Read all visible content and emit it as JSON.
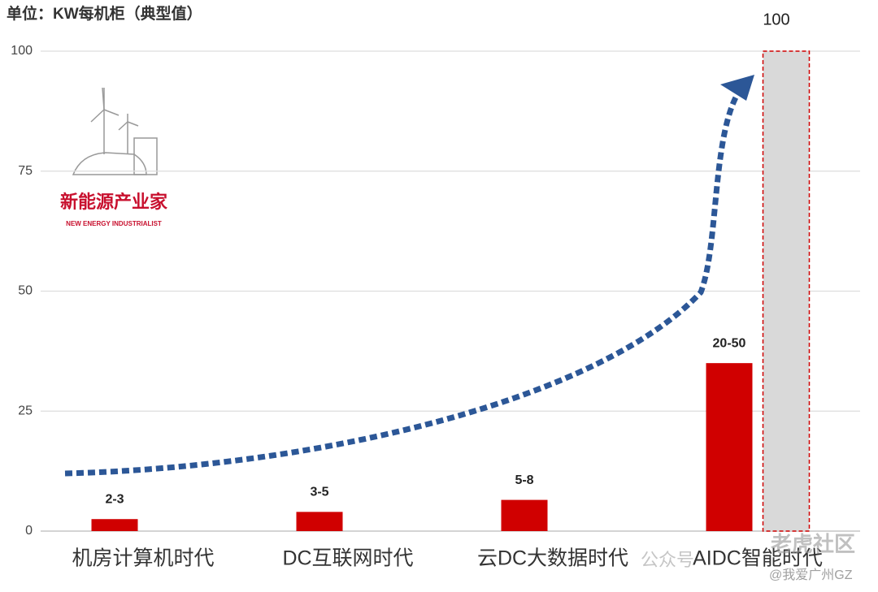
{
  "chart_data": {
    "type": "bar",
    "title": "单位：KW每机柜（典型值）",
    "categories": [
      "机房计算机时代",
      "DC互联网时代",
      "云DC大数据时代",
      "AIDC智能时代"
    ],
    "series": [
      {
        "color": "#d00000",
        "values": [
          2.5,
          4,
          6.5,
          35
        ],
        "value_labels": [
          "2-3",
          "3-5",
          "5-8",
          "20-50"
        ]
      },
      {
        "color": "#d9d9d9",
        "edge_color": "#d00000",
        "values": [
          null,
          null,
          null,
          100
        ]
      }
    ],
    "ylim": [
      0,
      100
    ],
    "yticks": [
      0,
      25,
      50,
      75,
      100
    ],
    "grid": true
  },
  "watermarks": [
    "新能源产业家",
    "NEW ENERGY INDUSTRIALIST",
    "公众号",
    "老虎社区",
    "@我爱广州GZ"
  ]
}
